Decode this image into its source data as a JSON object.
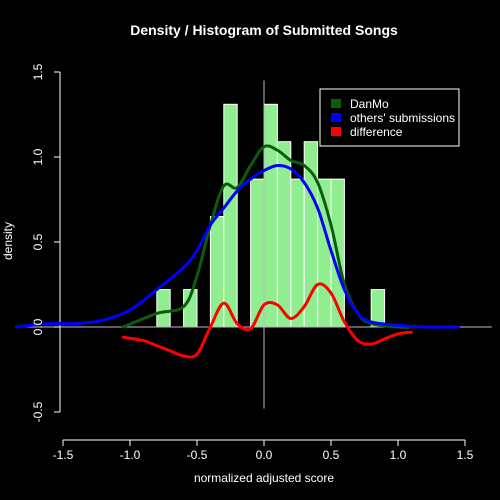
{
  "chart_data": {
    "type": "histogram-density",
    "title": "Density / Histogram of Submitted Songs",
    "xlabel": "normalized adjusted score",
    "ylabel": "density",
    "xlim": [
      -1.85,
      1.7
    ],
    "ylim": [
      -0.55,
      1.55
    ],
    "x_ticks": [
      "-1.5",
      "-1.0",
      "-0.5",
      "0.0",
      "0.5",
      "1.0",
      "1.5"
    ],
    "x_tick_values": [
      -1.5,
      -1.0,
      -0.5,
      0.0,
      0.5,
      1.0,
      1.5
    ],
    "y_ticks": [
      "-0.5",
      "0.0",
      "0.5",
      "1.0",
      "1.5"
    ],
    "y_tick_values": [
      -0.5,
      0.0,
      0.5,
      1.0,
      1.5
    ],
    "legend_position": "top-right",
    "histogram": {
      "color": "#90ee90",
      "bin_width": 0.1,
      "bins": [
        {
          "left": -0.8,
          "value": 0.22
        },
        {
          "left": -0.6,
          "value": 0.22
        },
        {
          "left": -0.4,
          "value": 0.65
        },
        {
          "left": -0.3,
          "value": 1.31
        },
        {
          "left": -0.1,
          "value": 0.87
        },
        {
          "left": 0.0,
          "value": 1.31
        },
        {
          "left": 0.1,
          "value": 1.09
        },
        {
          "left": 0.2,
          "value": 0.87
        },
        {
          "left": 0.3,
          "value": 1.09
        },
        {
          "left": 0.4,
          "value": 0.87
        },
        {
          "left": 0.5,
          "value": 0.87
        },
        {
          "left": 0.8,
          "value": 0.22
        }
      ]
    },
    "series": [
      {
        "name": "DanMo",
        "color": "#0d5c0d",
        "x": [
          -1.05,
          -0.8,
          -0.6,
          -0.5,
          -0.4,
          -0.3,
          -0.2,
          -0.1,
          0.0,
          0.1,
          0.2,
          0.3,
          0.4,
          0.5,
          0.6,
          0.7,
          0.8,
          1.0,
          1.1
        ],
        "y": [
          0.0,
          0.08,
          0.12,
          0.3,
          0.6,
          0.83,
          0.82,
          0.95,
          1.06,
          1.04,
          0.98,
          0.95,
          0.85,
          0.6,
          0.25,
          0.08,
          0.02,
          0.0,
          0.0
        ]
      },
      {
        "name": "others' submissions",
        "color": "#0000ff",
        "x": [
          -1.85,
          -1.6,
          -1.4,
          -1.2,
          -1.0,
          -0.8,
          -0.6,
          -0.5,
          -0.4,
          -0.3,
          -0.2,
          -0.1,
          0.0,
          0.1,
          0.2,
          0.3,
          0.4,
          0.5,
          0.6,
          0.7,
          0.8,
          1.0,
          1.2,
          1.45
        ],
        "y": [
          0.0,
          0.02,
          0.02,
          0.04,
          0.1,
          0.22,
          0.35,
          0.45,
          0.6,
          0.7,
          0.8,
          0.87,
          0.92,
          0.95,
          0.93,
          0.85,
          0.7,
          0.45,
          0.22,
          0.08,
          0.03,
          0.01,
          0.0,
          0.0
        ]
      },
      {
        "name": "difference",
        "color": "#ff0000",
        "x": [
          -1.05,
          -0.9,
          -0.8,
          -0.7,
          -0.6,
          -0.5,
          -0.4,
          -0.3,
          -0.2,
          -0.1,
          0.0,
          0.1,
          0.2,
          0.3,
          0.4,
          0.5,
          0.6,
          0.7,
          0.8,
          0.9,
          1.0,
          1.1
        ],
        "y": [
          -0.06,
          -0.08,
          -0.11,
          -0.14,
          -0.17,
          -0.16,
          0.0,
          0.14,
          0.02,
          -0.01,
          0.13,
          0.13,
          0.05,
          0.12,
          0.25,
          0.2,
          0.03,
          -0.08,
          -0.1,
          -0.07,
          -0.04,
          -0.03
        ]
      }
    ]
  }
}
